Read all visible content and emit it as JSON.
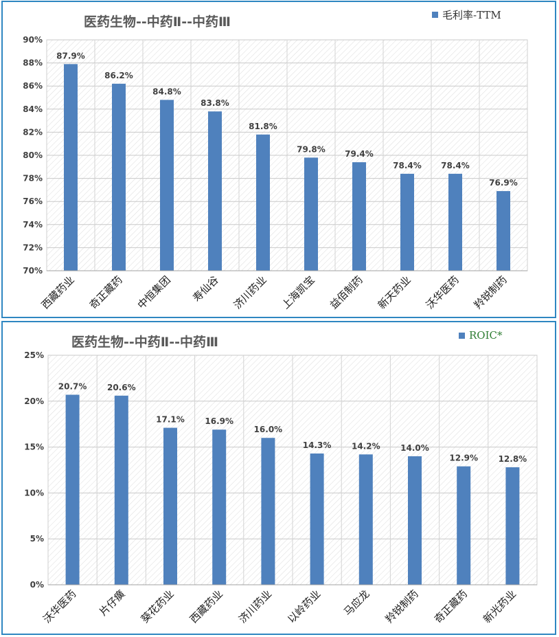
{
  "chart_data": [
    {
      "type": "bar",
      "title": "医药生物--中药Ⅱ--中药Ⅲ",
      "series": [
        {
          "name": "毛利率-TTM",
          "values": [
            87.9,
            86.2,
            84.8,
            83.8,
            81.8,
            79.8,
            79.4,
            78.4,
            78.4,
            76.9
          ]
        }
      ],
      "categories": [
        "西藏药业",
        "奇正藏药",
        "中恒集团",
        "寿仙谷",
        "济川药业",
        "上海凯宝",
        "益佰制药",
        "新天药业",
        "沃华医药",
        "羚锐制药"
      ],
      "data_labels": [
        "87.9%",
        "86.2%",
        "84.8%",
        "83.8%",
        "81.8%",
        "79.8%",
        "79.4%",
        "78.4%",
        "78.4%",
        "76.9%"
      ],
      "yticks": [
        "70%",
        "72%",
        "74%",
        "76%",
        "78%",
        "80%",
        "82%",
        "84%",
        "86%",
        "88%",
        "90%"
      ],
      "ylim": [
        70,
        90
      ],
      "grid": true,
      "legend_position": "top-right",
      "bar_color": "#4f81bd"
    },
    {
      "type": "bar",
      "title": "医药生物--中药Ⅱ--中药Ⅲ",
      "series": [
        {
          "name": "ROIC*",
          "values": [
            20.7,
            20.6,
            17.1,
            16.9,
            16.0,
            14.3,
            14.2,
            14.0,
            12.9,
            12.8
          ]
        }
      ],
      "categories": [
        "沃华医药",
        "片仔癀",
        "葵花药业",
        "西藏药业",
        "济川药业",
        "以岭药业",
        "马应龙",
        "羚锐制药",
        "奇正藏药",
        "新光药业"
      ],
      "data_labels": [
        "20.7%",
        "20.6%",
        "17.1%",
        "16.9%",
        "16.0%",
        "14.3%",
        "14.2%",
        "14.0%",
        "12.9%",
        "12.8%"
      ],
      "yticks": [
        "0%",
        "5%",
        "10%",
        "15%",
        "20%",
        "25%"
      ],
      "ylim": [
        0,
        25
      ],
      "grid": true,
      "legend_position": "top-right",
      "bar_color": "#4f81bd"
    }
  ]
}
